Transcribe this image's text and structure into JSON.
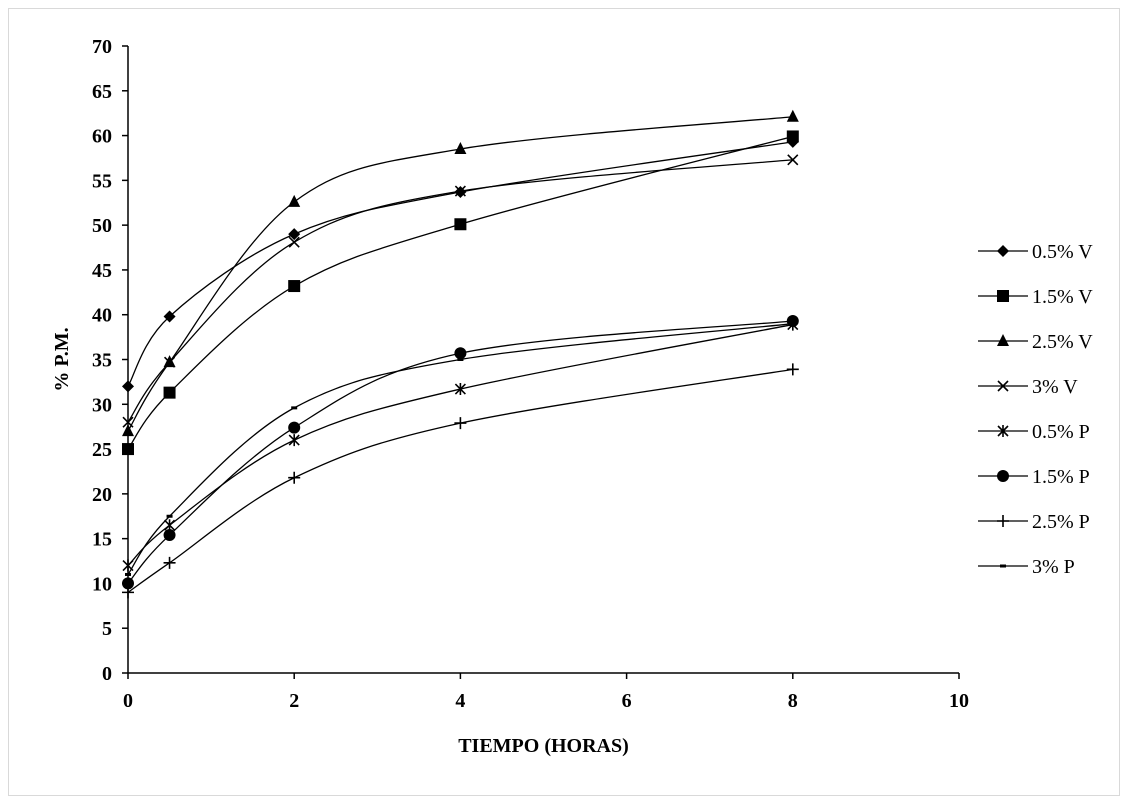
{
  "chart_data": {
    "type": "line",
    "smooth": true,
    "xlabel": "TIEMPO (HORAS)",
    "ylabel": "% P.M.",
    "xlim": [
      0,
      10
    ],
    "ylim": [
      0,
      70
    ],
    "xticks": [
      "0",
      "2",
      "4",
      "6",
      "8",
      "10"
    ],
    "yticks": [
      "0",
      "5",
      "10",
      "15",
      "20",
      "25",
      "30",
      "35",
      "40",
      "45",
      "50",
      "55",
      "60",
      "65",
      "70"
    ],
    "grid": false,
    "legend_position": "right",
    "line_color": "#000000",
    "x": [
      0,
      0.5,
      2,
      4,
      8
    ],
    "series": [
      {
        "name": "0.5% V",
        "marker": "diamond",
        "values": [
          32,
          39.8,
          49,
          53.7,
          59.3
        ]
      },
      {
        "name": "1.5% V",
        "marker": "square",
        "values": [
          25,
          31.3,
          43.2,
          50.1,
          59.9
        ]
      },
      {
        "name": "2.5% V",
        "marker": "triangle",
        "values": [
          27,
          34.7,
          52.6,
          58.5,
          62.1
        ]
      },
      {
        "name": "3% V",
        "marker": "x",
        "values": [
          28,
          34.7,
          48.1,
          53.8,
          57.3
        ]
      },
      {
        "name": "0.5% P",
        "marker": "star",
        "values": [
          12,
          16.5,
          26,
          31.7,
          38.9
        ]
      },
      {
        "name": "1.5% P",
        "marker": "circle",
        "values": [
          10,
          15.4,
          27.4,
          35.7,
          39.3
        ]
      },
      {
        "name": "2.5% P",
        "marker": "plus",
        "values": [
          9,
          12.3,
          21.8,
          27.9,
          33.9
        ]
      },
      {
        "name": "3% P",
        "marker": "dash",
        "values": [
          11,
          17.5,
          29.6,
          35,
          39
        ]
      }
    ]
  }
}
